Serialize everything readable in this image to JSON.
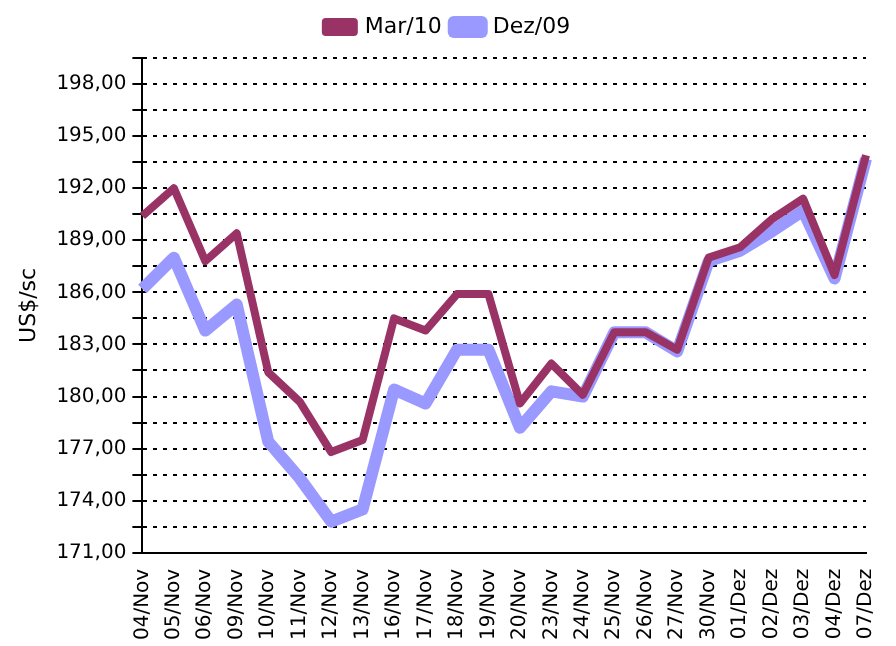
{
  "chart_data": {
    "type": "line",
    "ylabel": "US$/sc",
    "categories": [
      "04/Nov",
      "05/Nov",
      "06/Nov",
      "09/Nov",
      "10/Nov",
      "11/Nov",
      "12/Nov",
      "13/Nov",
      "16/Nov",
      "17/Nov",
      "18/Nov",
      "19/Nov",
      "20/Nov",
      "23/Nov",
      "24/Nov",
      "25/Nov",
      "26/Nov",
      "27/Nov",
      "30/Nov",
      "01/Dez",
      "02/Dez",
      "03/Dez",
      "04/Dez",
      "07/Dez"
    ],
    "series": [
      {
        "name": "Dez/09",
        "color": "#9999ff",
        "values": [
          186.2,
          188.0,
          183.8,
          185.3,
          177.4,
          175.3,
          172.8,
          173.5,
          180.4,
          179.6,
          182.7,
          182.7,
          178.2,
          180.3,
          180.0,
          183.7,
          183.7,
          182.6,
          187.8,
          188.4,
          189.5,
          190.7,
          186.8,
          193.7
        ]
      },
      {
        "name": "Mar/10",
        "color": "#993366",
        "values": [
          190.4,
          192.0,
          187.8,
          189.4,
          181.4,
          179.7,
          176.8,
          177.5,
          184.5,
          183.8,
          185.9,
          185.9,
          179.6,
          181.9,
          180.1,
          183.7,
          183.7,
          182.7,
          188.0,
          188.6,
          190.2,
          191.4,
          187.0,
          193.9
        ]
      }
    ],
    "ylim": [
      171,
      199.5
    ],
    "yticks": [
      {
        "value": 171,
        "label": "171,00"
      },
      {
        "value": 172.5,
        "label": null
      },
      {
        "value": 174,
        "label": "174,00"
      },
      {
        "value": 175.5,
        "label": null
      },
      {
        "value": 177,
        "label": "177,00"
      },
      {
        "value": 178.5,
        "label": null
      },
      {
        "value": 180,
        "label": "180,00"
      },
      {
        "value": 181.5,
        "label": null
      },
      {
        "value": 183,
        "label": "183,00"
      },
      {
        "value": 184.5,
        "label": null
      },
      {
        "value": 186,
        "label": "186,00"
      },
      {
        "value": 187.5,
        "label": null
      },
      {
        "value": 189,
        "label": "189,00"
      },
      {
        "value": 190.5,
        "label": null
      },
      {
        "value": 192,
        "label": "192,00"
      },
      {
        "value": 193.5,
        "label": null
      },
      {
        "value": 195,
        "label": "195,00"
      },
      {
        "value": 196.5,
        "label": null
      },
      {
        "value": 198,
        "label": "198,00"
      },
      {
        "value": 199.5,
        "label": null
      }
    ],
    "grid": "y",
    "legend": "top",
    "marker": "none",
    "line_style": "solid"
  }
}
